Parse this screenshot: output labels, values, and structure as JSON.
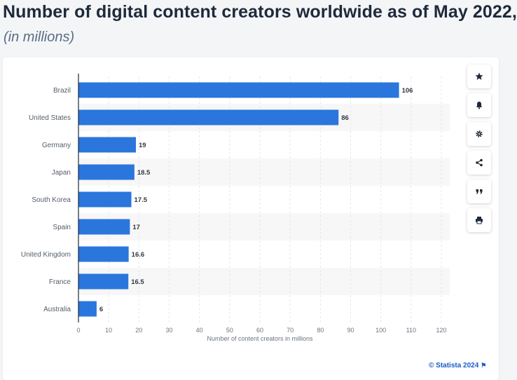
{
  "header": {
    "title": "Number of digital content creators worldwide as of May 2022,",
    "subtitle": "(in millions)"
  },
  "toolbar": {
    "items": [
      {
        "icon": "star-icon",
        "label": "Favorite"
      },
      {
        "icon": "bell-icon",
        "label": "Notifications"
      },
      {
        "icon": "gear-icon",
        "label": "Settings"
      },
      {
        "icon": "share-icon",
        "label": "Share"
      },
      {
        "icon": "quote-icon",
        "label": "Cite"
      },
      {
        "icon": "print-icon",
        "label": "Print"
      }
    ]
  },
  "credit": {
    "text": "© Statista 2024",
    "flag": "⚑"
  },
  "colors": {
    "bar": "#2a76dd",
    "axis": "#1e2a3b",
    "grid": "#e3e6ea",
    "band": "#f7f7f8",
    "label": "#555e68"
  },
  "chart_data": {
    "type": "bar",
    "orientation": "horizontal",
    "categories": [
      "Brazil",
      "United States",
      "Germany",
      "Japan",
      "South Korea",
      "Spain",
      "United Kingdom",
      "France",
      "Australia"
    ],
    "values": [
      106,
      86,
      19,
      18.5,
      17.5,
      17,
      16.6,
      16.5,
      6
    ],
    "value_labels": [
      "106",
      "86",
      "19",
      "18.5",
      "17.5",
      "17",
      "16.6",
      "16.5",
      "6"
    ],
    "title": "Number of digital content creators worldwide as of May 2022,",
    "subtitle": "(in millions)",
    "xlabel": "Number of content creators in millions",
    "ylabel": "",
    "xlim": [
      0,
      120
    ],
    "xticks": [
      0,
      10,
      20,
      30,
      40,
      50,
      60,
      70,
      80,
      90,
      100,
      110,
      120
    ],
    "grid": true
  }
}
